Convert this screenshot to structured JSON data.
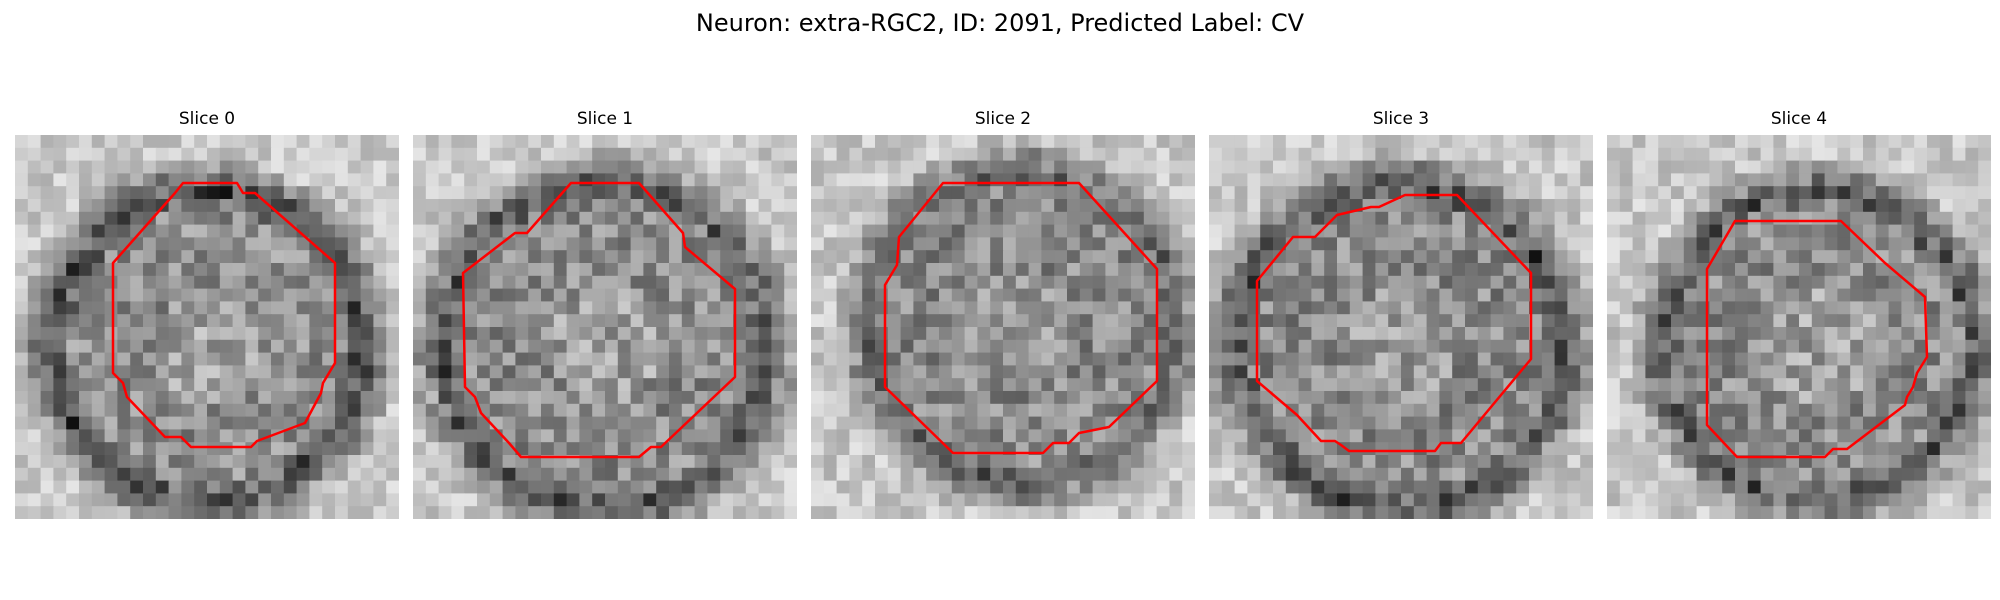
{
  "figure": {
    "title": "Neuron: extra-RGC2, ID: 2091, Predicted Label: CV",
    "outline_color": "#ff0000",
    "colormap": "grayscale"
  },
  "panels": [
    {
      "title": "Slice 0",
      "content": "grayscale cell image with red outline"
    },
    {
      "title": "Slice 1",
      "content": "grayscale cell image with red outline"
    },
    {
      "title": "Slice 2",
      "content": "grayscale cell image with red outline"
    },
    {
      "title": "Slice 3",
      "content": "grayscale cell image with red outline"
    },
    {
      "title": "Slice 4",
      "content": "grayscale cell image with red outline"
    }
  ]
}
